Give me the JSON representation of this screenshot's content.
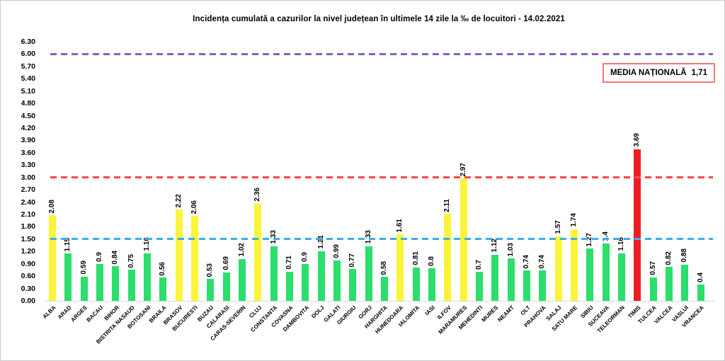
{
  "frame": {
    "background": "#ffffff",
    "border_color": "#c9c9c9"
  },
  "chart_data": {
    "type": "bar",
    "title": "Incidența cumulată a cazurilor la nivel județean în ultimele 14 zile la ‰ de locuitori - 14.02.2021",
    "xlabel": "",
    "ylabel": "",
    "ylim": [
      0,
      6.3
    ],
    "ytick_step": 0.3,
    "grid": false,
    "legend_position": "none",
    "yticks": [
      "0.00",
      "0.30",
      "0.60",
      "0.90",
      "1.20",
      "1.50",
      "1.80",
      "2.10",
      "2.40",
      "2.70",
      "3.00",
      "3.30",
      "3.60",
      "3.90",
      "4.20",
      "4.50",
      "4.80",
      "5.10",
      "5.40",
      "5.70",
      "6.00",
      "6.30"
    ],
    "categories": [
      "ALBA",
      "ARAD",
      "ARGES",
      "BACAU",
      "BIHOR",
      "BISTRITA NASAUD",
      "BOTOSANI",
      "BRAILA",
      "BRASOV",
      "BUCURESTI",
      "BUZAU",
      "CALARASI",
      "CARAS-SEVERIN",
      "CLUJ",
      "CONSTANTA",
      "COVASNA",
      "DAMBOVITA",
      "DOLJ",
      "GALATI",
      "GIURGIU",
      "GORJ",
      "HARGHITA",
      "HUNEDOARA",
      "IALOMITA",
      "IASI",
      "ILFOV",
      "MARAMURES",
      "MEHEDINTI",
      "MURES",
      "NEAMT",
      "OLT",
      "PRAHOVA",
      "SALAJ",
      "SATU MARE",
      "SIBIU",
      "SUCEAVA",
      "TELEORMAN",
      "TIMIS",
      "TULCEA",
      "VALCEA",
      "VASLUI",
      "VRANCEA"
    ],
    "values": [
      2.08,
      1.15,
      0.59,
      0.9,
      0.84,
      0.75,
      1.16,
      0.56,
      2.22,
      2.06,
      0.53,
      0.69,
      1.02,
      2.36,
      1.33,
      0.71,
      0.9,
      1.21,
      0.99,
      0.77,
      1.33,
      0.58,
      1.61,
      0.81,
      0.8,
      2.11,
      2.97,
      0.7,
      1.12,
      1.03,
      0.74,
      0.74,
      1.57,
      1.74,
      1.27,
      1.4,
      1.16,
      3.69,
      0.57,
      0.82,
      0.88,
      0.4
    ],
    "value_labels": [
      "2.08",
      "1.15",
      "0.59",
      "0.9",
      "0.84",
      "0.75",
      "1.16",
      "0.56",
      "2.22",
      "2.06",
      "0.53",
      "0.69",
      "1.02",
      "2.36",
      "1.33",
      "0.71",
      "0.9",
      "1.21",
      "0.99",
      "0.77",
      "1.33",
      "0.58",
      "1.61",
      "0.81",
      "0.8",
      "2.11",
      "2.97",
      "0.7",
      "1.12",
      "1.03",
      "0.74",
      "0.74",
      "1.57",
      "1.74",
      "1.27",
      "1.4",
      "1.16",
      "3.69",
      "0.57",
      "0.82",
      "0.88",
      "0.4"
    ],
    "bar_colors": [
      "yellow",
      "green",
      "green",
      "green",
      "green",
      "green",
      "green",
      "green",
      "yellow",
      "yellow",
      "green",
      "green",
      "green",
      "yellow",
      "green",
      "green",
      "green",
      "green",
      "green",
      "green",
      "green",
      "green",
      "yellow",
      "green",
      "green",
      "yellow",
      "yellow",
      "green",
      "green",
      "green",
      "green",
      "green",
      "yellow",
      "yellow",
      "green",
      "green",
      "green",
      "red",
      "green",
      "green",
      "green",
      "green"
    ],
    "palette": {
      "green": "#2bde6d",
      "yellow": "#fbf438",
      "red": "#ec1c24"
    },
    "reference_lines": [
      {
        "name": "threshold-6-00",
        "value": 6.0,
        "color": "#8c5fbe"
      },
      {
        "name": "threshold-3-00",
        "value": 3.0,
        "color": "#ff4545"
      },
      {
        "name": "threshold-1-50",
        "value": 1.5,
        "color": "#3baee8"
      }
    ],
    "annotation": {
      "label": "MEDIA NAȚIONALĂ",
      "value": "1,71",
      "border_color": "#f47878"
    }
  }
}
